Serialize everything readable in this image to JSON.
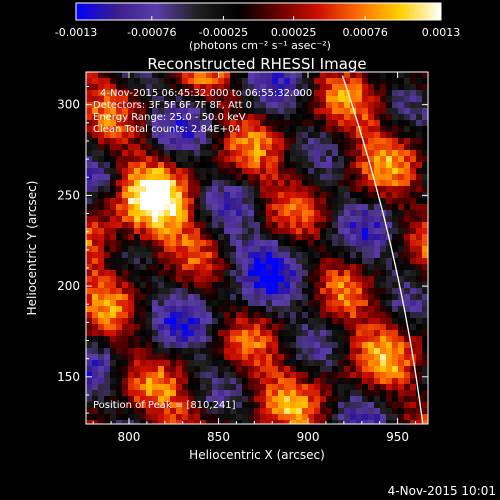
{
  "chart_data": {
    "type": "heatmap",
    "title": "Reconstructed RHESSI Image",
    "xlabel": "Heliocentric X (arcsec)",
    "ylabel": "Heliocentric Y (arcsec)",
    "xlim": [
      776,
      967
    ],
    "ylim": [
      124,
      318
    ],
    "xticks": [
      800,
      850,
      900,
      950
    ],
    "yticks": [
      150,
      200,
      250,
      300
    ],
    "colorbar": {
      "ticks": [
        "-0.0013",
        "-0.00076",
        "-0.00025",
        "0.00025",
        "0.00076",
        "0.0013"
      ],
      "min": -0.0013,
      "max": 0.0013,
      "units_label": "(photons cm⁻² s⁻¹ asec⁻²)",
      "colors": [
        "#0000ff",
        "#3a1e8c",
        "#5a3da8",
        "#202020",
        "#000000",
        "#6b0000",
        "#d01000",
        "#ff7000",
        "#ffd000",
        "#ffffff"
      ]
    },
    "info_lines": [
      "4-Nov-2015 06:45:32.000 to 06:55:32.000",
      "Detectors: 3F 5F 6F 7F 8F, Att 0",
      "Energy Range: 25.0 - 50.0 keV",
      "Clean     Total counts: 2.84E+04"
    ],
    "peak_label": "Position of Peak = [810,241]",
    "peak": [
      810,
      241
    ],
    "footer_date": "4-Nov-2015 10:01"
  }
}
